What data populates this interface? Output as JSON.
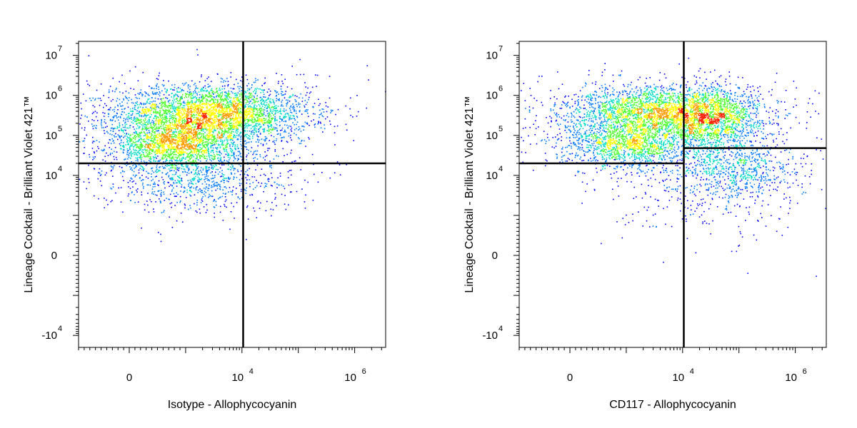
{
  "chart_data": [
    {
      "type": "scatter",
      "subtype": "flow-cytometry-density-dot-plot",
      "title": "",
      "xlabel": "Isotype - Allophycocyanin",
      "ylabel": "Lineage Cocktail - Brilliant Violet 421™",
      "x_scale": "biexponential",
      "y_scale": "biexponential",
      "x_ticks": [
        {
          "value": 0,
          "base": "0",
          "exp": ""
        },
        {
          "value": 10000,
          "base": "10",
          "exp": "4"
        },
        {
          "value": 1000000,
          "base": "10",
          "exp": "6"
        }
      ],
      "y_ticks": [
        {
          "value": -10000,
          "base": "-10",
          "exp": "4"
        },
        {
          "value": 0,
          "base": "0",
          "exp": ""
        },
        {
          "value": 10000,
          "base": "10",
          "exp": "4"
        },
        {
          "value": 100000,
          "base": "10",
          "exp": "5"
        },
        {
          "value": 1000000,
          "base": "10",
          "exp": "6"
        },
        {
          "value": 10000000,
          "base": "10",
          "exp": "7"
        }
      ],
      "gates": {
        "x_threshold": 10500,
        "y_left": 20000,
        "y_right": 20000
      },
      "populations": [
        {
          "x": 3000,
          "y": 350000,
          "sx": 0.85,
          "sy": 0.35,
          "n": 3200
        },
        {
          "x": 800,
          "y": 60000,
          "sx": 0.55,
          "sy": 0.3,
          "n": 1700
        },
        {
          "x": 1500,
          "y": 9000,
          "sx": 0.9,
          "sy": 0.45,
          "n": 900
        },
        {
          "x": 1500,
          "y": 300000,
          "sx": 1.3,
          "sy": 0.6,
          "n": 450
        }
      ],
      "colors": [
        "#0000ff",
        "#0078ff",
        "#00dcc8",
        "#50ff30",
        "#ffff00",
        "#ff9c00",
        "#ff2000"
      ],
      "grid": false,
      "legend": "none"
    },
    {
      "type": "scatter",
      "subtype": "flow-cytometry-density-dot-plot",
      "title": "",
      "xlabel": "CD117 - Allophycocyanin",
      "ylabel": "Lineage Cocktail - Brilliant Violet 421™",
      "x_scale": "biexponential",
      "y_scale": "biexponential",
      "x_ticks": [
        {
          "value": 0,
          "base": "0",
          "exp": ""
        },
        {
          "value": 10000,
          "base": "10",
          "exp": "4"
        },
        {
          "value": 1000000,
          "base": "10",
          "exp": "6"
        }
      ],
      "y_ticks": [
        {
          "value": -10000,
          "base": "-10",
          "exp": "4"
        },
        {
          "value": 0,
          "base": "0",
          "exp": ""
        },
        {
          "value": 10000,
          "base": "10",
          "exp": "4"
        },
        {
          "value": 100000,
          "base": "10",
          "exp": "5"
        },
        {
          "value": 1000000,
          "base": "10",
          "exp": "6"
        },
        {
          "value": 10000000,
          "base": "10",
          "exp": "7"
        }
      ],
      "gates": {
        "x_threshold": 10500,
        "y_left": 20000,
        "y_right": 48000
      },
      "populations": [
        {
          "x": 4000,
          "y": 380000,
          "sx": 0.85,
          "sy": 0.32,
          "n": 2600
        },
        {
          "x": 1200,
          "y": 60000,
          "sx": 0.6,
          "sy": 0.3,
          "n": 1300
        },
        {
          "x": 35000,
          "y": 250000,
          "sx": 0.45,
          "sy": 0.4,
          "n": 1100
        },
        {
          "x": 90000,
          "y": 14000,
          "sx": 0.55,
          "sy": 0.35,
          "n": 650
        },
        {
          "x": 20000,
          "y": 4000,
          "sx": 1.0,
          "sy": 0.8,
          "n": 300
        },
        {
          "x": 3000,
          "y": 150000,
          "sx": 1.3,
          "sy": 0.7,
          "n": 350
        }
      ],
      "colors": [
        "#0000ff",
        "#0078ff",
        "#00dcc8",
        "#50ff30",
        "#ffff00",
        "#ff9c00",
        "#ff2000"
      ],
      "grid": false,
      "legend": "none"
    }
  ]
}
